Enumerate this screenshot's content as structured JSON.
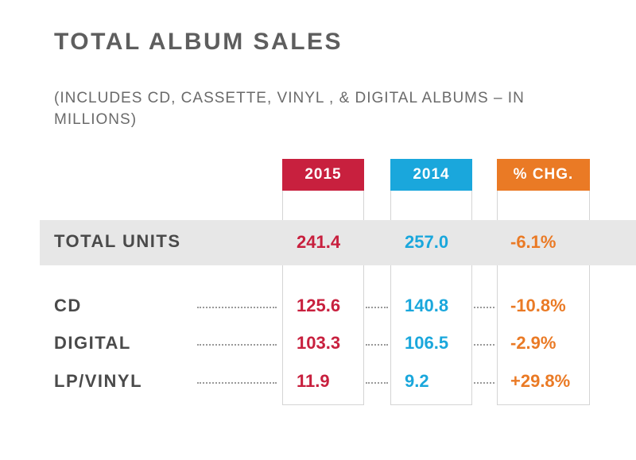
{
  "title": "TOTAL ALBUM SALES",
  "subtitle": "(INCLUDES CD, CASSETTE, VINYL , & DIGITAL ALBUMS – IN MILLIONS)",
  "colors": {
    "y2015": "#c8203e",
    "y2014": "#1aa7dc",
    "chg": "#ea7a25",
    "band": "#e7e7e7"
  },
  "chart_data": {
    "type": "table",
    "title": "TOTAL ALBUM SALES",
    "subtitle": "(INCLUDES CD, CASSETTE, VINYL , & DIGITAL ALBUMS – IN MILLIONS)",
    "columns": [
      "2015",
      "2014",
      "% CHG."
    ],
    "total": {
      "label": "TOTAL UNITS",
      "values": [
        "241.4",
        "257.0",
        "-6.1%"
      ]
    },
    "rows": [
      {
        "label": "CD",
        "values": [
          "125.6",
          "140.8",
          "-10.8%"
        ]
      },
      {
        "label": "DIGITAL",
        "values": [
          "103.3",
          "106.5",
          "-2.9%"
        ]
      },
      {
        "label": "LP/VINYL",
        "values": [
          "11.9",
          "9.2",
          "+29.8%"
        ]
      }
    ]
  }
}
